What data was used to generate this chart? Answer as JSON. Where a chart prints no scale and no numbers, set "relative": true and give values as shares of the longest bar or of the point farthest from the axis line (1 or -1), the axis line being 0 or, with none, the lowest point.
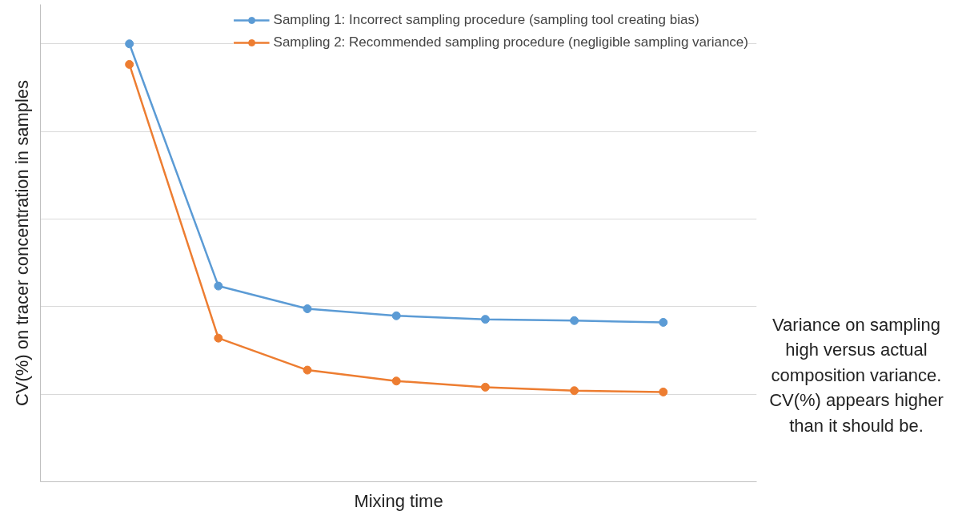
{
  "chart_data": {
    "type": "line",
    "relative": true,
    "xlabel": "Mixing time",
    "ylabel": "CV(%) on tracer concentration in samples",
    "categories": [
      null,
      null,
      null,
      null,
      null,
      null,
      null
    ],
    "series": [
      {
        "name": "Sampling 1: Incorrect sampling procedure (sampling tool creating bias)",
        "color": "#5b9bd5",
        "values": [
          1,
          0.447,
          0.395,
          0.379,
          0.371,
          0.368,
          0.364
        ]
      },
      {
        "name": "Sampling 2: Recommended sampling procedure (negligible sampling variance)",
        "color": "#ed7d31",
        "values": [
          0.953,
          0.328,
          0.255,
          0.23,
          0.216,
          0.208,
          0.205
        ]
      }
    ],
    "annotations": [
      "Variance on sampling high versus actual composition variance. CV(%) appears higher than it should be."
    ],
    "grid": "y",
    "legend": "top right",
    "marker": "circle",
    "line_style": "solid"
  }
}
